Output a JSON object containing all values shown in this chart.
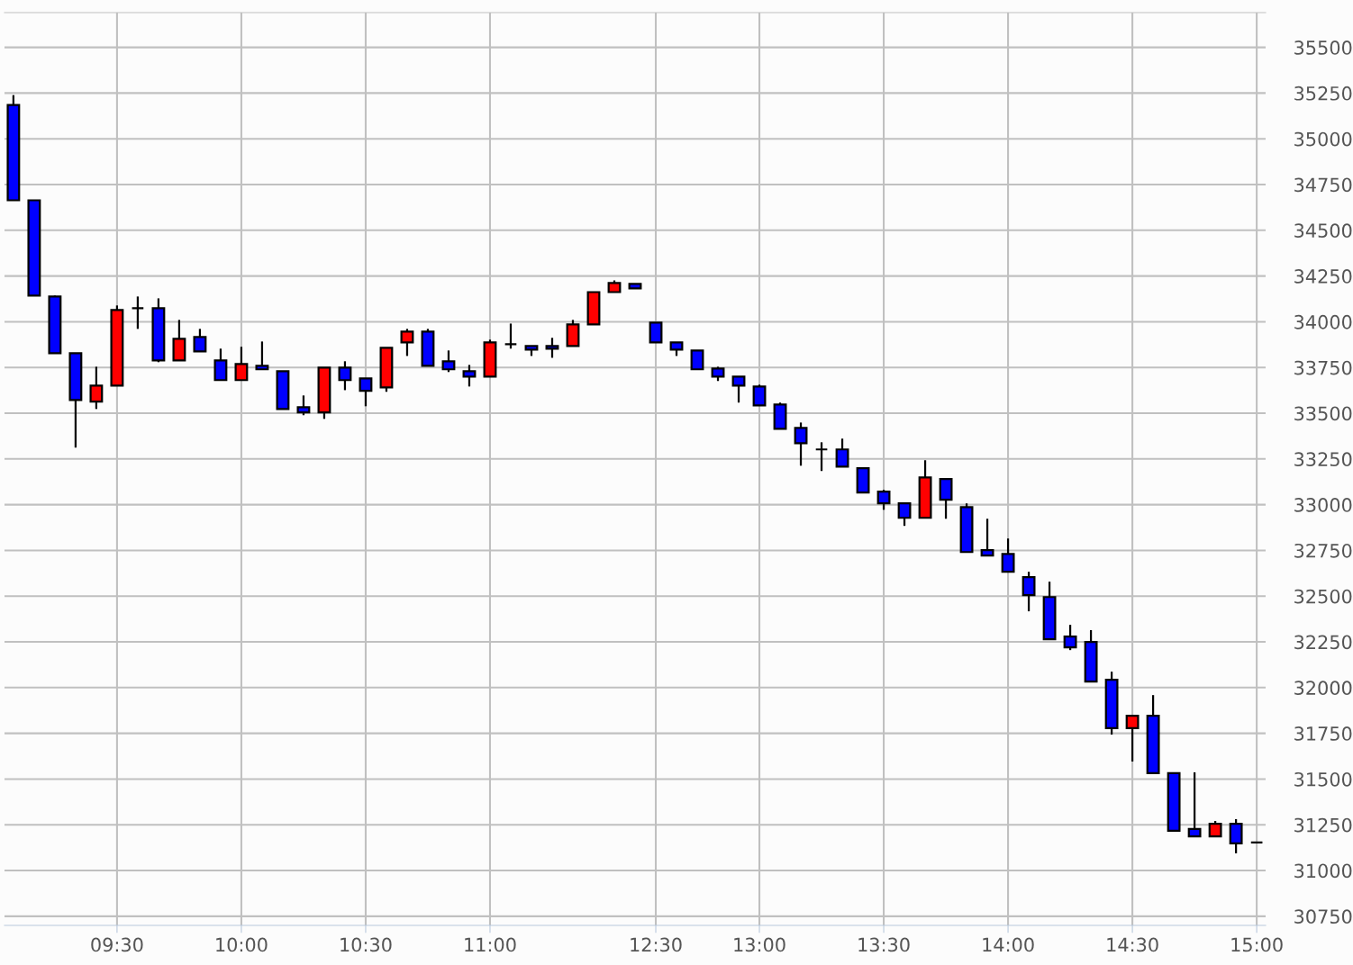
{
  "chart_data": {
    "type": "candlestick",
    "categories": [
      null,
      null,
      null,
      null,
      null,
      "09:30",
      null,
      null,
      null,
      null,
      null,
      "10:00",
      null,
      null,
      null,
      null,
      null,
      "10:30",
      null,
      null,
      null,
      null,
      null,
      "11:00",
      null,
      null,
      null,
      null,
      null,
      null,
      null,
      "12:30",
      null,
      null,
      null,
      null,
      "13:00",
      null,
      null,
      null,
      null,
      null,
      "13:30",
      null,
      null,
      null,
      null,
      null,
      "14:00",
      null,
      null,
      null,
      null,
      null,
      "14:30",
      null,
      null,
      null,
      null,
      null,
      "15:00"
    ],
    "ohlc": [
      [
        35185,
        35239,
        34664,
        34664
      ],
      [
        34664,
        34664,
        34143,
        34143
      ],
      [
        34138,
        34143,
        33828,
        33828
      ],
      [
        33828,
        33828,
        33312,
        33572
      ],
      [
        33563,
        33754,
        33523,
        33651
      ],
      [
        33651,
        34089,
        33651,
        34064
      ],
      [
        34074,
        34138,
        33961,
        34074
      ],
      [
        34074,
        34128,
        33779,
        33789
      ],
      [
        33789,
        34010,
        33789,
        33907
      ],
      [
        33917,
        33961,
        33838,
        33838
      ],
      [
        33789,
        33853,
        33681,
        33681
      ],
      [
        33681,
        33863,
        33681,
        33769
      ],
      [
        33759,
        33892,
        33740,
        33740
      ],
      [
        33730,
        33730,
        33523,
        33523
      ],
      [
        33533,
        33597,
        33489,
        33504
      ],
      [
        33504,
        33749,
        33469,
        33749
      ],
      [
        33749,
        33784,
        33626,
        33681
      ],
      [
        33690,
        33690,
        33538,
        33622
      ],
      [
        33641,
        33858,
        33617,
        33858
      ],
      [
        33887,
        33961,
        33813,
        33946
      ],
      [
        33946,
        33961,
        33759,
        33759
      ],
      [
        33784,
        33843,
        33725,
        33740
      ],
      [
        33730,
        33764,
        33646,
        33700
      ],
      [
        33700,
        33902,
        33700,
        33887
      ],
      [
        33877,
        33990,
        33853,
        33877
      ],
      [
        33867,
        33867,
        33813,
        33848
      ],
      [
        33867,
        33912,
        33803,
        33853
      ],
      [
        33867,
        34010,
        33867,
        33985
      ],
      [
        33985,
        34162,
        33985,
        34162
      ],
      [
        34162,
        34226,
        34162,
        34212
      ],
      [
        34207,
        34207,
        34182,
        34182
      ],
      [
        33995,
        33995,
        33887,
        33887
      ],
      [
        33887,
        33887,
        33813,
        33848
      ],
      [
        33843,
        33843,
        33740,
        33740
      ],
      [
        33744,
        33754,
        33676,
        33700
      ],
      [
        33700,
        33700,
        33558,
        33651
      ],
      [
        33646,
        33656,
        33543,
        33543
      ],
      [
        33548,
        33558,
        33415,
        33415
      ],
      [
        33420,
        33449,
        33213,
        33336
      ],
      [
        33302,
        33341,
        33184,
        33302
      ],
      [
        33302,
        33361,
        33208,
        33208
      ],
      [
        33199,
        33199,
        33066,
        33066
      ],
      [
        33071,
        33081,
        32972,
        33007
      ],
      [
        33007,
        33007,
        32884,
        32928
      ],
      [
        32928,
        33243,
        32928,
        33149
      ],
      [
        33140,
        33140,
        32923,
        33027
      ],
      [
        32987,
        33007,
        32741,
        32741
      ],
      [
        32751,
        32923,
        32722,
        32722
      ],
      [
        32731,
        32815,
        32633,
        32633
      ],
      [
        32604,
        32633,
        32417,
        32505
      ],
      [
        32495,
        32579,
        32264,
        32264
      ],
      [
        32279,
        32343,
        32205,
        32220
      ],
      [
        32250,
        32314,
        32033,
        32033
      ],
      [
        32043,
        32087,
        31743,
        31778
      ],
      [
        31778,
        31846,
        31596,
        31846
      ],
      [
        31846,
        31959,
        31532,
        31532
      ],
      [
        31532,
        31532,
        31217,
        31217
      ],
      [
        31227,
        31537,
        31187,
        31187
      ],
      [
        31187,
        31271,
        31187,
        31256
      ],
      [
        31256,
        31281,
        31094,
        31148
      ],
      [
        31153,
        31153,
        31153,
        31153
      ]
    ],
    "colors": [
      "#0000ff",
      "#0000ff",
      "#0000ff",
      "#0000ff",
      "#ff0000",
      "#ff0000",
      "#000000",
      "#0000ff",
      "#ff0000",
      "#0000ff",
      "#0000ff",
      "#ff0000",
      "#0000ff",
      "#0000ff",
      "#0000ff",
      "#ff0000",
      "#0000ff",
      "#0000ff",
      "#ff0000",
      "#ff0000",
      "#0000ff",
      "#0000ff",
      "#0000ff",
      "#ff0000",
      "#000000",
      "#0000ff",
      "#0000ff",
      "#ff0000",
      "#ff0000",
      "#ff0000",
      "#0000ff",
      "#0000ff",
      "#0000ff",
      "#0000ff",
      "#0000ff",
      "#0000ff",
      "#0000ff",
      "#0000ff",
      "#0000ff",
      "#000000",
      "#0000ff",
      "#0000ff",
      "#0000ff",
      "#0000ff",
      "#ff0000",
      "#0000ff",
      "#0000ff",
      "#0000ff",
      "#0000ff",
      "#0000ff",
      "#0000ff",
      "#0000ff",
      "#0000ff",
      "#0000ff",
      "#ff0000",
      "#0000ff",
      "#0000ff",
      "#0000ff",
      "#ff0000",
      "#0000ff",
      "#000000"
    ],
    "ylim": [
      30700,
      35690
    ],
    "yticks": [
      30750,
      31000,
      31250,
      31500,
      31750,
      32000,
      32250,
      32500,
      32750,
      33000,
      33250,
      33500,
      33750,
      34000,
      34250,
      34500,
      34750,
      35000,
      35250,
      35500
    ],
    "grid": true
  }
}
